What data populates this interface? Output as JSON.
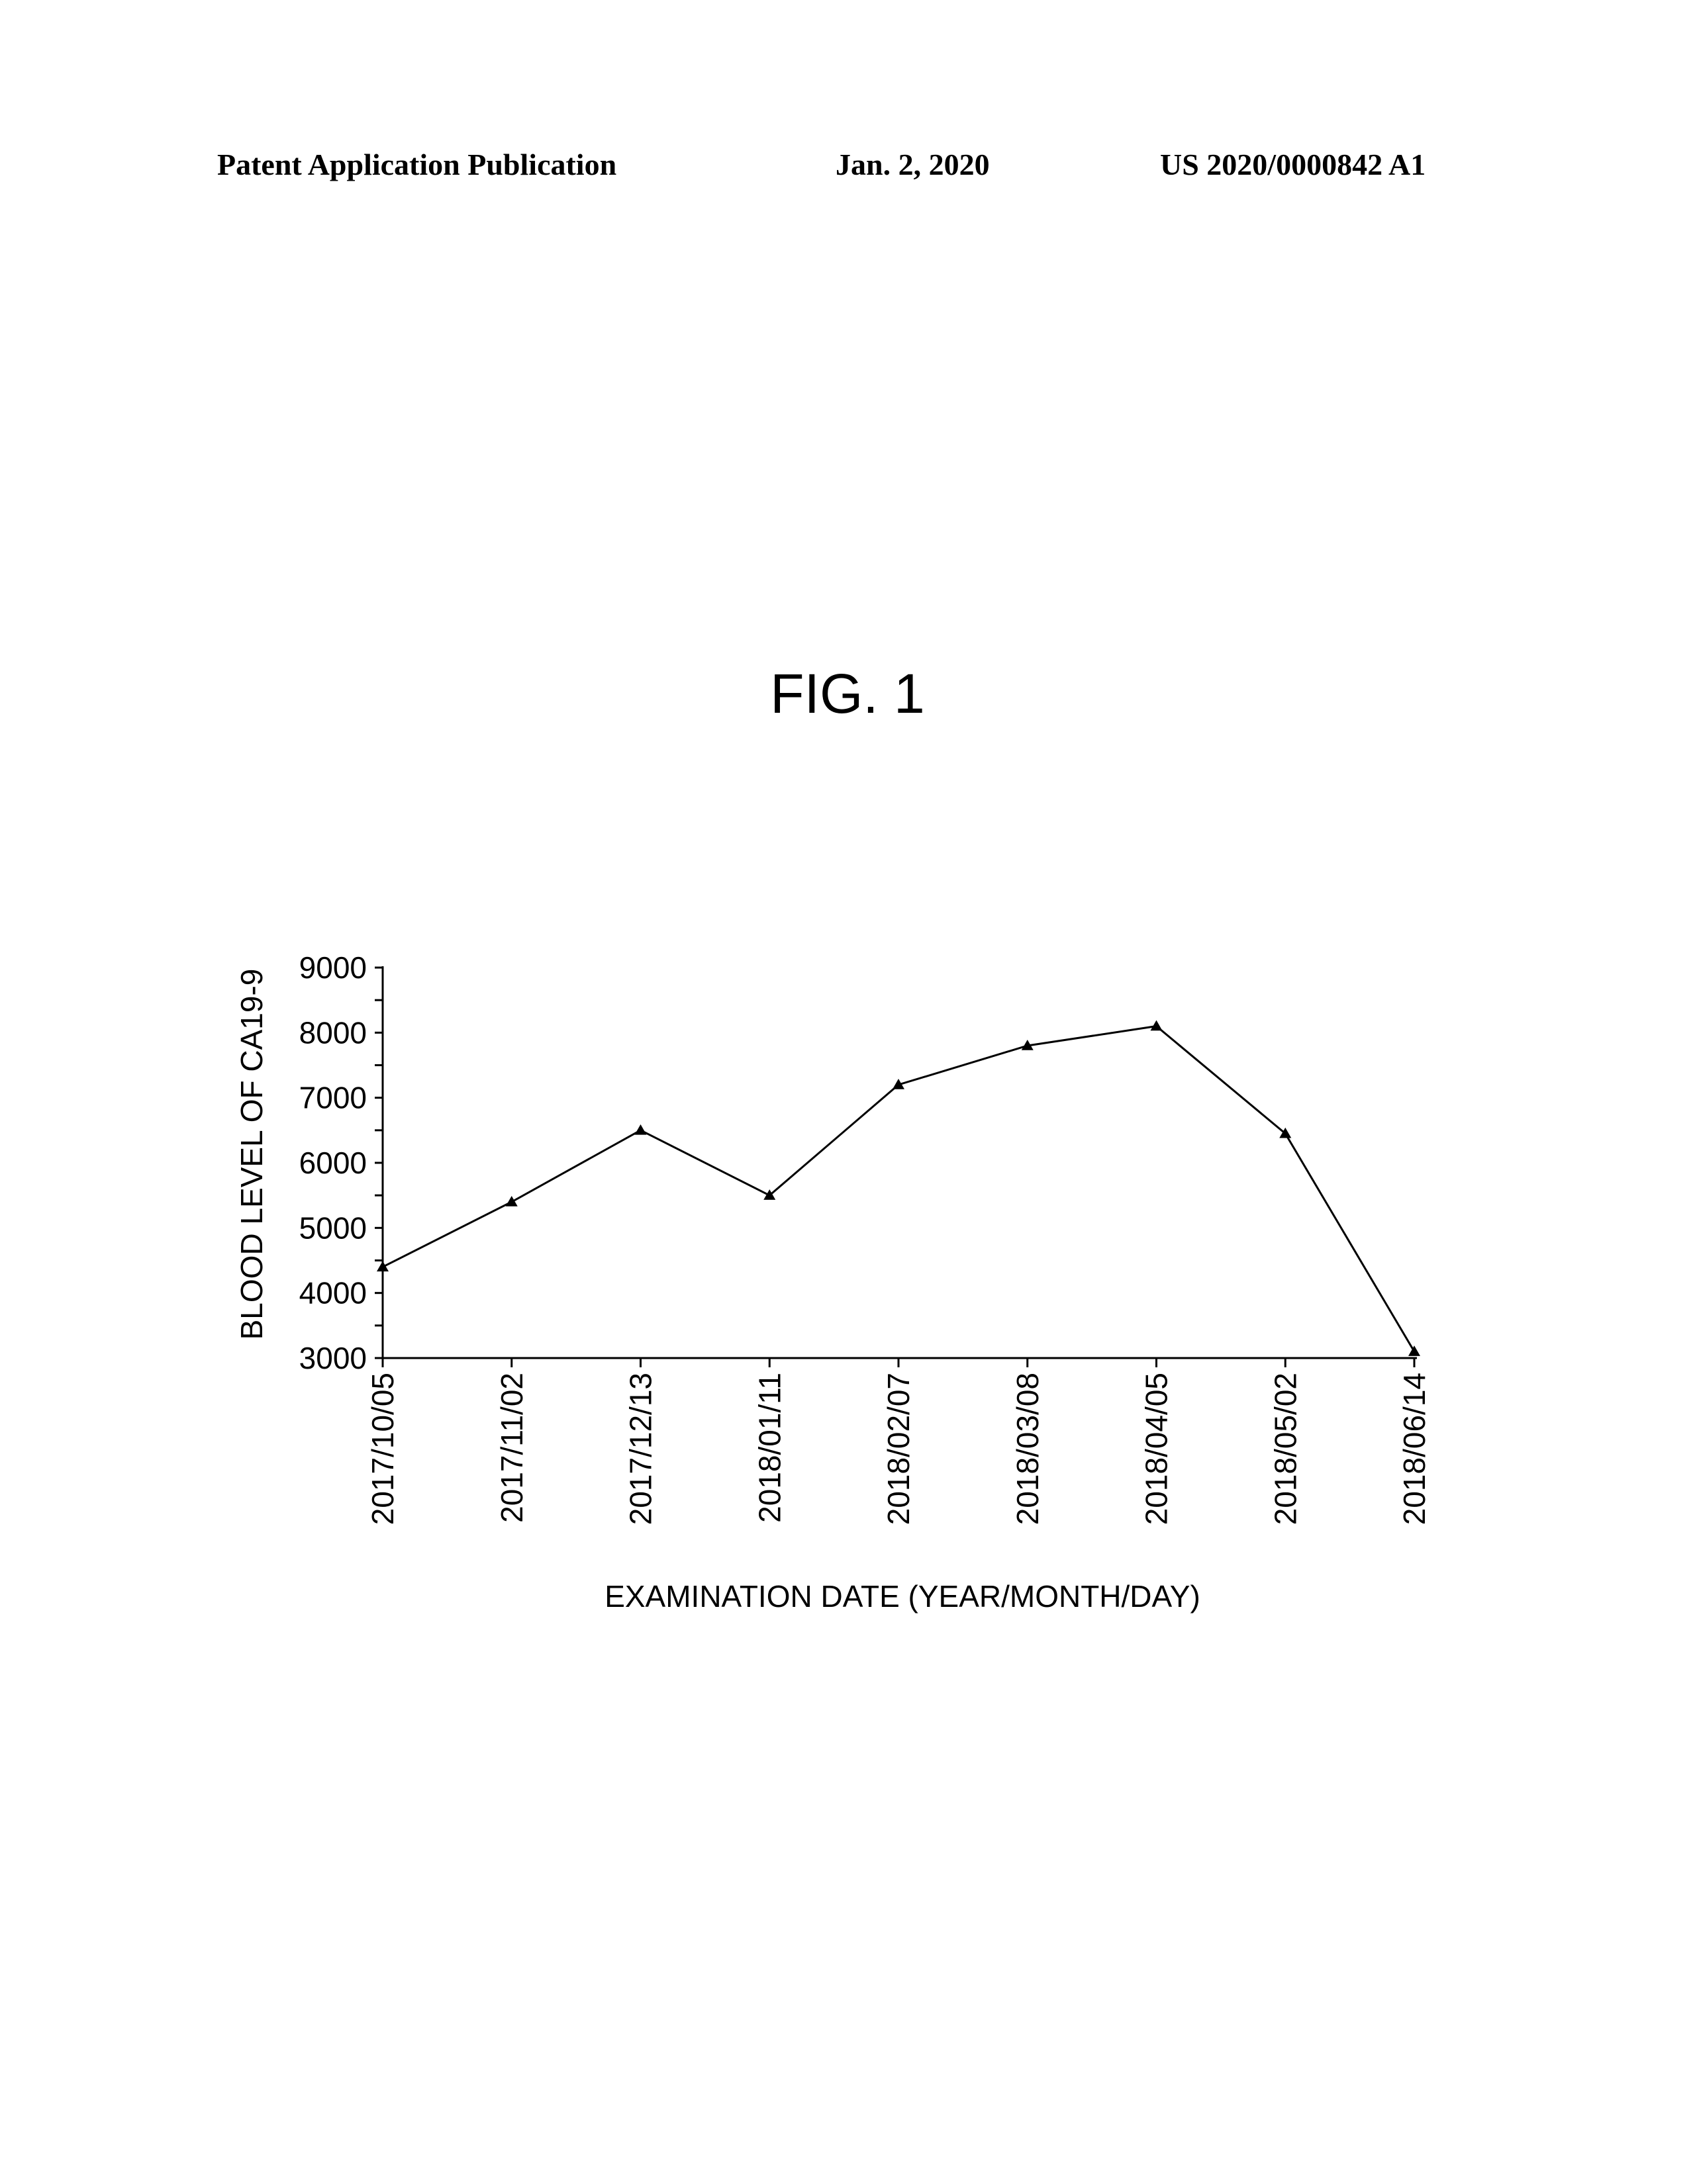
{
  "header": {
    "left": "Patent Application Publication",
    "center": "Jan. 2, 2020",
    "right": "US 2020/0000842 A1"
  },
  "figure": {
    "label": "FIG. 1"
  },
  "chart_data": {
    "type": "line",
    "title": "",
    "xlabel": "EXAMINATION DATE (YEAR/MONTH/DAY)",
    "ylabel": "BLOOD LEVEL OF CA19-9",
    "categories": [
      "2017/10/05",
      "2017/11/02",
      "2017/12/13",
      "2018/01/11",
      "2018/02/07",
      "2018/03/08",
      "2018/04/05",
      "2018/05/02",
      "2018/06/14"
    ],
    "series": [
      {
        "marker": "triangle",
        "color": "#000000",
        "values": [
          4400,
          5400,
          6500,
          5500,
          7200,
          7800,
          8100,
          6450,
          3100
        ]
      }
    ],
    "ylim": [
      3000,
      9000
    ],
    "yticks": [
      3000,
      4000,
      5000,
      6000,
      7000,
      8000,
      9000
    ],
    "grid": false,
    "legend": "none"
  }
}
